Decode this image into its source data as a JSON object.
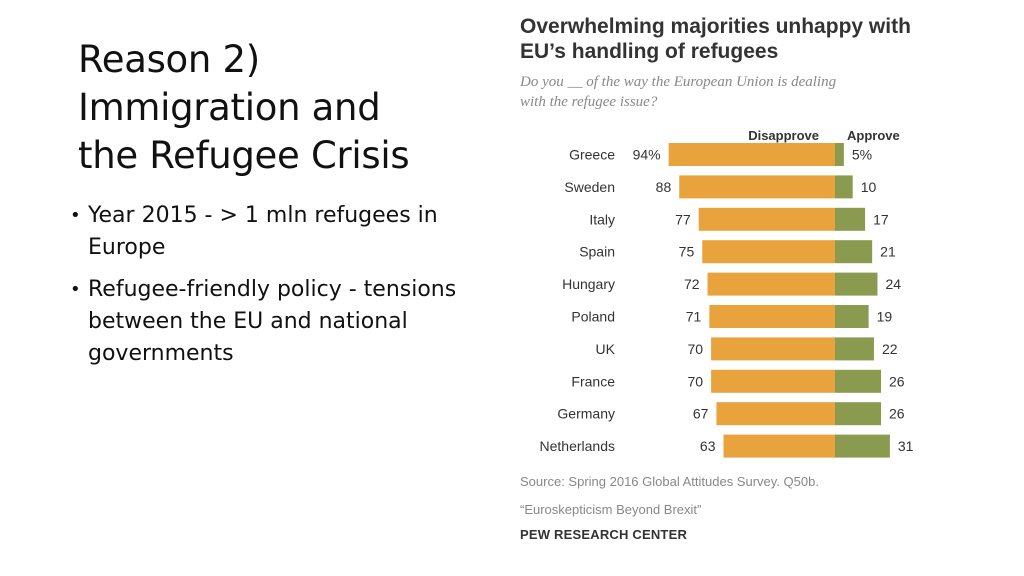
{
  "slide": {
    "title": "Reason 2)\nImmigration and\nthe Refugee Crisis",
    "bullets": [
      "Year 2015 - > 1 mln refugees in Europe",
      "Refugee-friendly policy   - tensions between the EU and national governments"
    ]
  },
  "chart": {
    "title": "Overwhelming majorities unhappy with\nEU’s handling of refugees",
    "subtitle": "Do you __ of the way the European Union is dealing\nwith the refugee issue?",
    "source": "Source: Spring 2016 Global Attitudes Survey. Q50b.",
    "report": "“Euroskepticism Beyond Brexit”",
    "brand": "PEW RESEARCH CENTER"
  },
  "chart_data": {
    "type": "bar",
    "orientation": "horizontal-diverging",
    "categories": [
      "Greece",
      "Sweden",
      "Italy",
      "Spain",
      "Hungary",
      "Poland",
      "UK",
      "France",
      "Germany",
      "Netherlands"
    ],
    "series": [
      {
        "name": "Disapprove",
        "values": [
          94,
          88,
          77,
          75,
          72,
          71,
          70,
          70,
          67,
          63
        ],
        "labels": [
          "94%",
          "88",
          "77",
          "75",
          "72",
          "71",
          "70",
          "70",
          "67",
          "63"
        ],
        "color": "#e8a33d"
      },
      {
        "name": "Approve",
        "values": [
          5,
          10,
          17,
          21,
          24,
          19,
          22,
          26,
          26,
          31
        ],
        "labels": [
          "5%",
          "10",
          "17",
          "21",
          "24",
          "19",
          "22",
          "26",
          "26",
          "31"
        ],
        "color": "#8a9a4e"
      }
    ],
    "legend_placement": "top",
    "grid": false
  }
}
